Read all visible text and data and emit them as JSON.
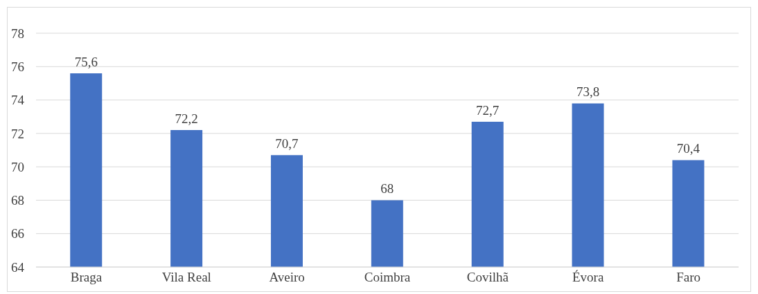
{
  "chart_data": {
    "type": "bar",
    "categories": [
      "Braga",
      "Vila Real",
      "Aveiro",
      "Coimbra",
      "Covilhã",
      "Évora",
      "Faro"
    ],
    "values": [
      75.6,
      72.2,
      70.7,
      68,
      72.7,
      73.8,
      70.4
    ],
    "value_labels": [
      "75,6",
      "72,2",
      "70,7",
      "68",
      "72,7",
      "73,8",
      "70,4"
    ],
    "color": "#4472c4",
    "ylim": [
      64,
      78
    ],
    "yticks": [
      64,
      66,
      68,
      70,
      72,
      74,
      76,
      78
    ],
    "grid": "y"
  }
}
